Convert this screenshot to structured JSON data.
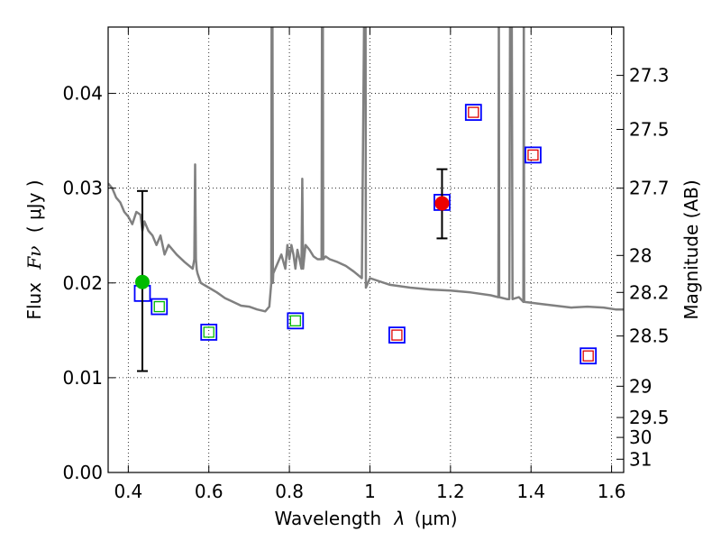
{
  "chart_data": {
    "type": "scatter",
    "xlabel": "Wavelength",
    "xlabel_symbol": "λ",
    "xlabel_unit": "(μm)",
    "ylabel": "Flux",
    "ylabel_symbol": "Fν",
    "ylabel_unit": "( μJy )",
    "y2label": "Magnitude (AB)",
    "xlim": [
      0.35,
      1.63
    ],
    "ylim": [
      0.0,
      0.047
    ],
    "grid": true,
    "xticks": [
      0.4,
      0.6,
      0.8,
      1.0,
      1.2,
      1.4,
      1.6
    ],
    "xtick_labels": [
      "0.4",
      "0.6",
      "0.8",
      "1",
      "1.2",
      "1.4",
      "1.6"
    ],
    "yticks": [
      0.0,
      0.01,
      0.02,
      0.03,
      0.04
    ],
    "ytick_labels": [
      "0.00",
      "0.01",
      "0.02",
      "0.03",
      "0.04"
    ],
    "y2ticks": [
      {
        "label": "27.3",
        "flux": 0.0419
      },
      {
        "label": "27.5",
        "flux": 0.0362
      },
      {
        "label": "27.7",
        "flux": 0.03
      },
      {
        "label": "28",
        "flux": 0.0229
      },
      {
        "label": "28.2",
        "flux": 0.019
      },
      {
        "label": "28.5",
        "flux": 0.0144
      },
      {
        "label": "29",
        "flux": 0.0091
      },
      {
        "label": "29.5",
        "flux": 0.0058
      },
      {
        "label": "30",
        "flux": 0.0037
      },
      {
        "label": "31",
        "flux": 0.0014
      }
    ],
    "series": [
      {
        "name": "model spectrum",
        "kind": "line",
        "color": "#808080",
        "x": [
          0.35,
          0.36,
          0.37,
          0.38,
          0.39,
          0.4,
          0.41,
          0.42,
          0.43,
          0.435,
          0.44,
          0.45,
          0.46,
          0.47,
          0.48,
          0.49,
          0.5,
          0.52,
          0.54,
          0.56,
          0.564,
          0.566,
          0.568,
          0.57,
          0.572,
          0.58,
          0.6,
          0.62,
          0.64,
          0.66,
          0.68,
          0.7,
          0.72,
          0.74,
          0.75,
          0.755,
          0.756,
          0.757,
          0.758,
          0.759,
          0.76,
          0.77,
          0.78,
          0.79,
          0.795,
          0.8,
          0.805,
          0.81,
          0.815,
          0.82,
          0.825,
          0.83,
          0.832,
          0.834,
          0.84,
          0.85,
          0.86,
          0.87,
          0.88,
          0.881,
          0.882,
          0.883,
          0.884,
          0.89,
          0.9,
          0.92,
          0.94,
          0.96,
          0.98,
          0.986,
          0.987,
          0.988,
          0.989,
          0.99,
          1.0,
          1.05,
          1.1,
          1.15,
          1.2,
          1.25,
          1.3,
          1.319,
          1.32,
          1.321,
          1.34,
          1.346,
          1.348,
          1.35,
          1.352,
          1.354,
          1.37,
          1.381,
          1.382,
          1.383,
          1.42,
          1.46,
          1.5,
          1.54,
          1.58,
          1.61,
          1.63
        ],
        "y": [
          0.0305,
          0.03,
          0.029,
          0.0285,
          0.0275,
          0.027,
          0.0262,
          0.0275,
          0.0272,
          0.0255,
          0.0265,
          0.0255,
          0.025,
          0.024,
          0.025,
          0.023,
          0.024,
          0.023,
          0.0222,
          0.0215,
          0.0225,
          0.0325,
          0.0225,
          0.0214,
          0.021,
          0.02,
          0.0195,
          0.019,
          0.0184,
          0.018,
          0.0176,
          0.0175,
          0.0172,
          0.017,
          0.0175,
          0.02,
          0.05,
          0.02,
          0.05,
          0.02,
          0.021,
          0.022,
          0.023,
          0.0215,
          0.024,
          0.0225,
          0.024,
          0.023,
          0.0215,
          0.0235,
          0.0225,
          0.0215,
          0.031,
          0.0215,
          0.024,
          0.0235,
          0.0228,
          0.0225,
          0.0225,
          0.05,
          0.05,
          0.05,
          0.0225,
          0.0228,
          0.0225,
          0.0222,
          0.0218,
          0.0212,
          0.0205,
          0.05,
          0.05,
          0.05,
          0.05,
          0.0195,
          0.0205,
          0.0198,
          0.0195,
          0.0193,
          0.0192,
          0.019,
          0.0187,
          0.0185,
          0.05,
          0.0185,
          0.0183,
          0.0183,
          0.05,
          0.05,
          0.05,
          0.0183,
          0.0185,
          0.018,
          0.05,
          0.018,
          0.0178,
          0.0176,
          0.0174,
          0.0175,
          0.0174,
          0.0172,
          0.0172
        ]
      },
      {
        "name": "blue squares",
        "kind": "square-open",
        "color": "#0000ff",
        "x": [
          0.435,
          0.477,
          0.6,
          0.815,
          1.067,
          1.179,
          1.257,
          1.405,
          1.542
        ],
        "y": [
          0.0189,
          0.0175,
          0.0148,
          0.016,
          0.0145,
          0.0285,
          0.038,
          0.0335,
          0.0123
        ]
      },
      {
        "name": "green squares",
        "kind": "square-open-small",
        "color": "#00bb00",
        "x": [
          0.477,
          0.6,
          0.815
        ],
        "y": [
          0.0175,
          0.0148,
          0.016
        ]
      },
      {
        "name": "red squares",
        "kind": "square-open-small",
        "color": "#dd0000",
        "x": [
          1.067,
          1.257,
          1.405,
          1.542
        ],
        "y": [
          0.0145,
          0.038,
          0.0335,
          0.0123
        ]
      },
      {
        "name": "measured flux",
        "kind": "circle-errorbar",
        "points": [
          {
            "x": 0.435,
            "y": 0.0201,
            "ylo": 0.0107,
            "yhi": 0.0297,
            "color": "#00bb00"
          },
          {
            "x": 1.179,
            "y": 0.0284,
            "ylo": 0.0247,
            "yhi": 0.032,
            "color": "#ee0000"
          }
        ]
      }
    ]
  }
}
